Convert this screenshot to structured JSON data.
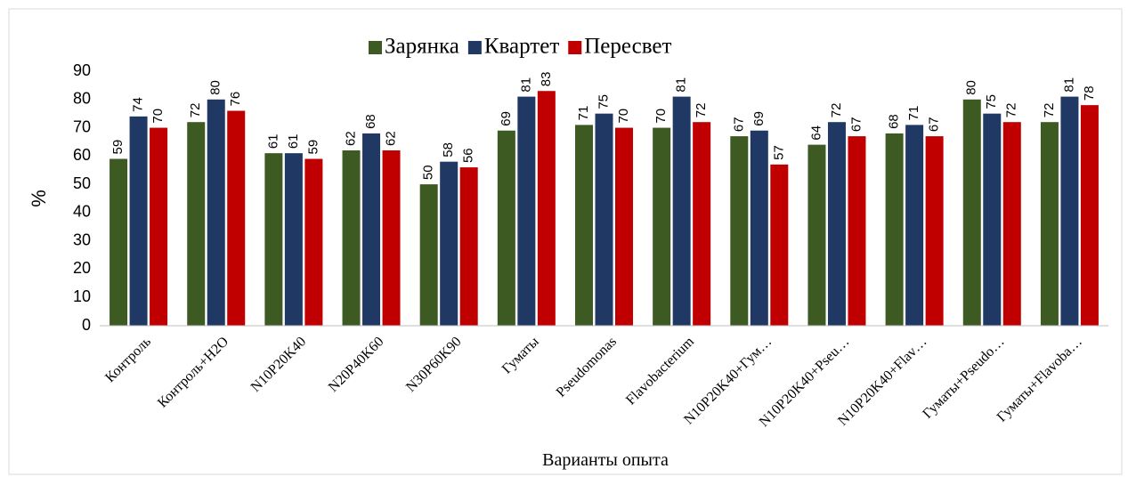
{
  "chart_data": {
    "type": "bar",
    "categories": [
      "Контроль",
      "Контроль+H2O",
      "N10P20K40",
      "N20P40K60",
      "N30P60K90",
      "Гуматы",
      "Pseudomonas",
      "Flavobacterium",
      "N10P20K40+Гум…",
      "N10P20K40+Pseu…",
      "N10P20K40+Flav…",
      "Гуматы+Pseudo…",
      "Гуматы+Flavoba…"
    ],
    "series": [
      {
        "name": "Зарянка",
        "color": "#3c5a22",
        "values": [
          59,
          72,
          61,
          62,
          50,
          69,
          71,
          70,
          67,
          64,
          68,
          80,
          72
        ]
      },
      {
        "name": "Квартет",
        "color": "#1f3864",
        "values": [
          74,
          80,
          61,
          68,
          58,
          81,
          75,
          81,
          69,
          72,
          71,
          75,
          81
        ]
      },
      {
        "name": "Пересвет",
        "color": "#c00000",
        "values": [
          70,
          76,
          59,
          62,
          56,
          83,
          70,
          72,
          57,
          67,
          67,
          72,
          78
        ]
      }
    ],
    "y_label": "%",
    "x_label": "Варианты опыта",
    "ylim": [
      0,
      90
    ],
    "yticks": [
      0,
      10,
      20,
      30,
      40,
      50,
      60,
      70,
      80,
      90
    ],
    "grid": false,
    "legend": "top"
  }
}
